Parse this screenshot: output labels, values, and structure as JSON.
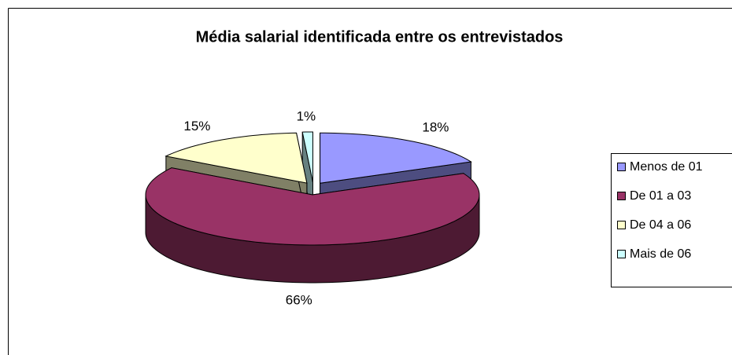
{
  "chart_data": {
    "type": "pie",
    "title": "Média salarial identificada entre os entrevistados",
    "categories": [
      "Menos de 01",
      "De 01 a 03",
      "De 04 a 06",
      "Mais de 06"
    ],
    "values": [
      18,
      66,
      15,
      1
    ],
    "value_labels": [
      "18%",
      "66%",
      "15%",
      "1%"
    ],
    "colors": [
      "#9999ff",
      "#993366",
      "#ffffcc",
      "#ccffff"
    ],
    "legend": "right"
  }
}
